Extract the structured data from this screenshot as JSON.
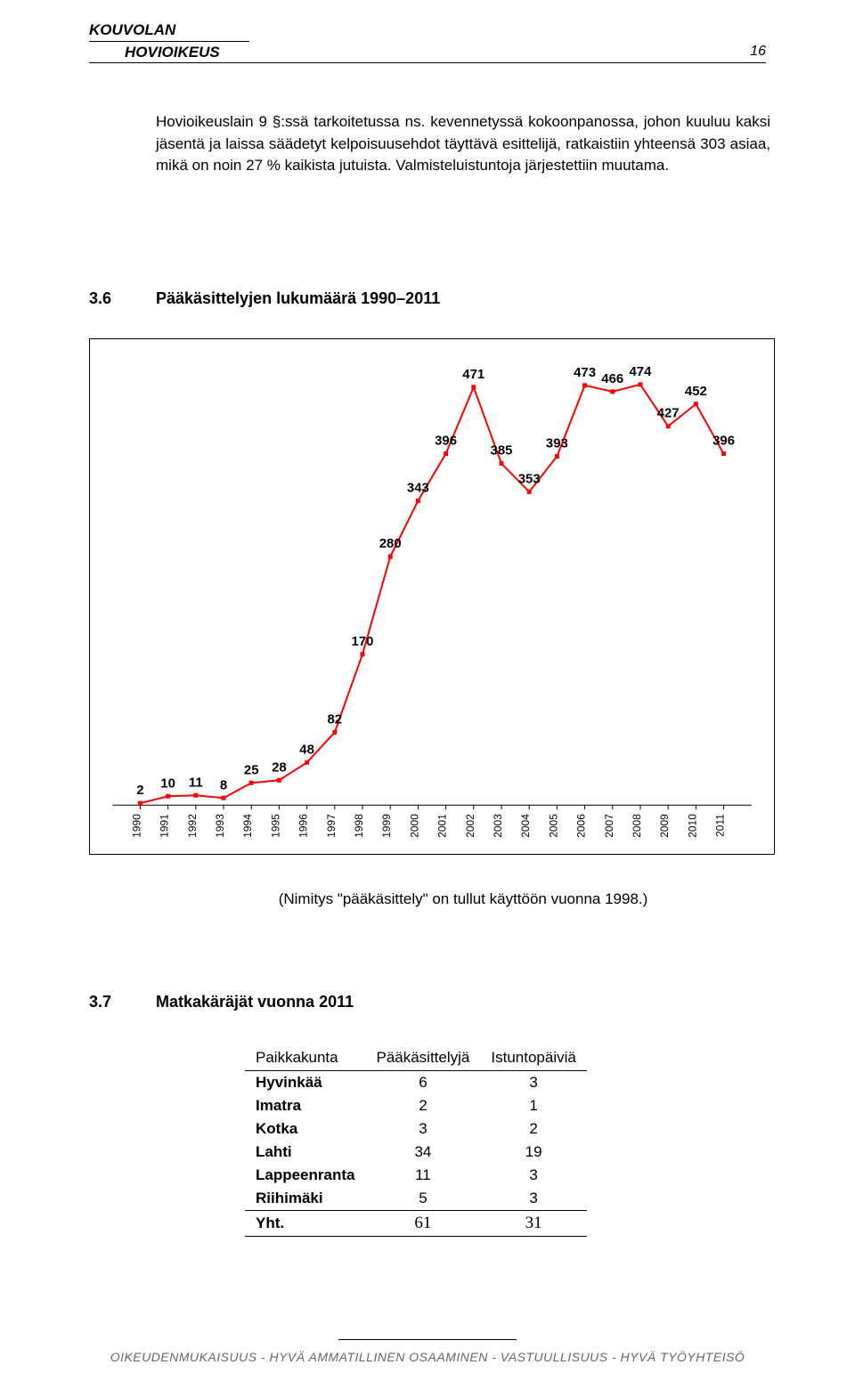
{
  "header": {
    "line1": "KOUVOLAN",
    "line2": "HOVIOIKEUS",
    "page_num": "16"
  },
  "body_paragraph": "Hovioikeuslain 9 §:ssä tarkoitetussa ns. kevennetyssä kokoonpanossa, johon kuuluu kaksi jäsentä ja laissa säädetyt kelpoisuusehdot täyttävä esittelijä, ratkaistiin yhteensä 303 asiaa, mikä on noin 27 % kaikista jutuista. Valmisteluistuntoja järjestettiin muutama.",
  "section36": {
    "num": "3.6",
    "title": "Pääkäsittelyjen lukumäärä 1990–2011"
  },
  "section37": {
    "num": "3.7",
    "title": "Matkakäräjät vuonna 2011"
  },
  "chart": {
    "years": [
      "1990",
      "1991",
      "1992",
      "1993",
      "1994",
      "1995",
      "1996",
      "1997",
      "1998",
      "1999",
      "2000",
      "2001",
      "2002",
      "2003",
      "2004",
      "2005",
      "2006",
      "2007",
      "2008",
      "2009",
      "2010",
      "2011"
    ],
    "values": [
      2,
      10,
      11,
      8,
      25,
      28,
      48,
      82,
      170,
      280,
      343,
      396,
      471,
      385,
      353,
      393,
      473,
      466,
      474,
      427,
      452,
      396
    ],
    "line_color": "#ff0000",
    "marker_color": "#ff0000",
    "label_color": "#000000",
    "axis_color": "#000000",
    "line_width": 2,
    "marker_size": 5,
    "label_fontsize": 15,
    "xlabel_fontsize": 12,
    "vmin": 0,
    "vmax": 500
  },
  "chart_note": "(Nimitys \"pääkäsittely\" on tullut käyttöön vuonna 1998.)",
  "table": {
    "caption": "",
    "headers": [
      "Paikkakunta",
      "Pääkäsittelyjä",
      "Istuntopäiviä"
    ],
    "rows": [
      [
        "Hyvinkää",
        "6",
        "3"
      ],
      [
        "Imatra",
        "2",
        "1"
      ],
      [
        "Kotka",
        "3",
        "2"
      ],
      [
        "Lahti",
        "34",
        "19"
      ],
      [
        "Lappeenranta",
        "11",
        "3"
      ],
      [
        "Riihimäki",
        "5",
        "3"
      ]
    ],
    "total": [
      "Yht.",
      "61",
      "31"
    ]
  },
  "footer": "OIKEUDENMUKAISUUS - HYVÄ AMMATILLINEN OSAAMINEN - VASTUULLISUUS - HYVÄ TYÖYHTEISÖ"
}
